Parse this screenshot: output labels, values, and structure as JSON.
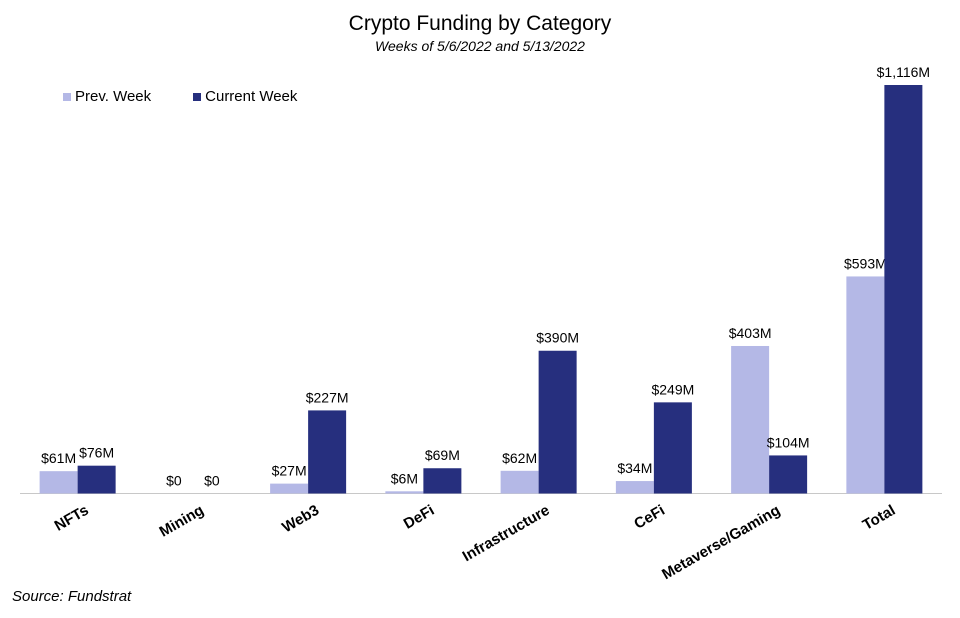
{
  "chart_data": {
    "type": "bar",
    "title": "Crypto Funding by Category",
    "subtitle": "Weeks of 5/6/2022 and 5/13/2022",
    "categories": [
      "NFTs",
      "Mining",
      "Web3",
      "DeFi",
      "Infrastructure",
      "CeFi",
      "Metaverse/Gaming",
      "Total"
    ],
    "series": [
      {
        "name": "Prev. Week",
        "color": "#b4b8e6",
        "values": [
          61,
          0,
          27,
          6,
          62,
          34,
          403,
          593
        ],
        "labels": [
          "$61M",
          "$0",
          "$27M",
          "$6M",
          "$62M",
          "$34M",
          "$403M",
          "$593M"
        ]
      },
      {
        "name": "Current Week",
        "color": "#262f7e",
        "values": [
          76,
          0,
          227,
          69,
          390,
          249,
          104,
          1116
        ],
        "labels": [
          "$76M",
          "$0",
          "$227M",
          "$69M",
          "$390M",
          "$249M",
          "$104M",
          "$1,116M"
        ]
      }
    ],
    "ylim": [
      0,
      1116
    ],
    "grid": false,
    "legend_position": "top-left"
  },
  "source": "Source: Fundstrat"
}
